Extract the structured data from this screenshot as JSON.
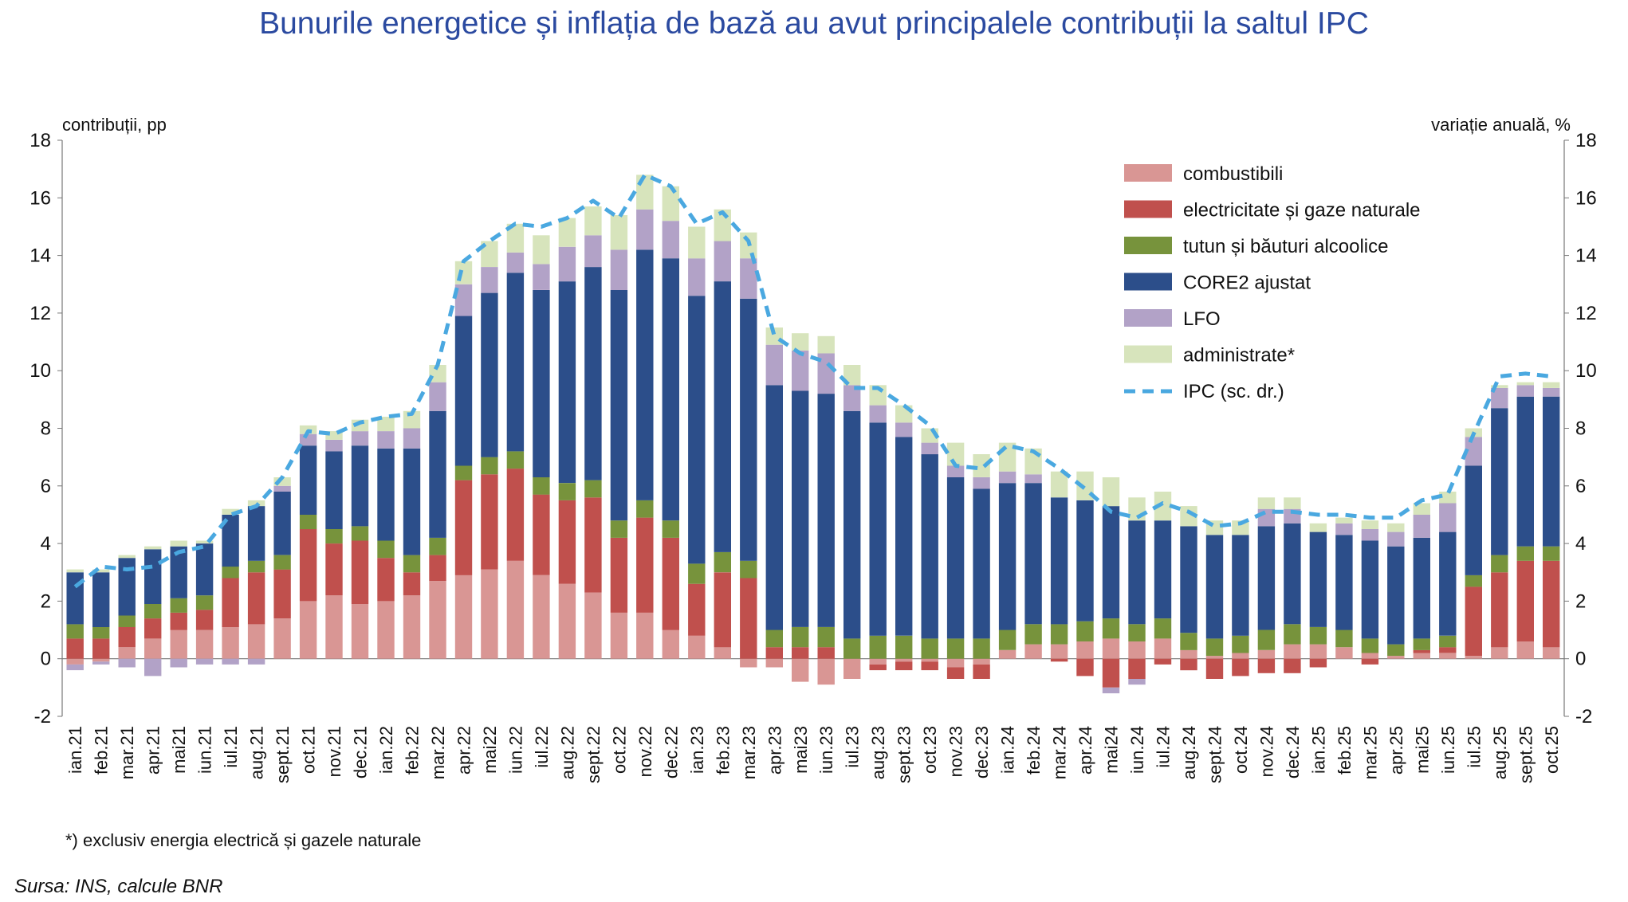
{
  "chart_data": {
    "type": "bar",
    "stacked": true,
    "title": "Bunurile energetice și inflația de bază au avut principalele contribuții la saltul IPC",
    "ylabel_left": "contribuții, pp",
    "ylabel_right": "variație anuală, %",
    "ylim": [
      -2,
      18
    ],
    "yticks": [
      -2,
      0,
      2,
      4,
      6,
      8,
      10,
      12,
      14,
      16,
      18
    ],
    "categories": [
      "ian.21",
      "feb.21",
      "mar.21",
      "apr.21",
      "mai21",
      "iun.21",
      "iul.21",
      "aug.21",
      "sept.21",
      "oct.21",
      "nov.21",
      "dec.21",
      "ian.22",
      "feb.22",
      "mar.22",
      "apr.22",
      "mai22",
      "iun.22",
      "iul.22",
      "aug.22",
      "sept.22",
      "oct.22",
      "nov.22",
      "dec.22",
      "ian.23",
      "feb.23",
      "mar.23",
      "apr.23",
      "mai23",
      "iun.23",
      "iul.23",
      "aug.23",
      "sept.23",
      "oct.23",
      "nov.23",
      "dec.23",
      "ian.24",
      "feb.24",
      "mar.24",
      "apr.24",
      "mai24",
      "iun.24",
      "iul.24",
      "aug.24",
      "sept.24",
      "oct.24",
      "nov.24",
      "dec.24",
      "ian.25",
      "feb.25",
      "mar.25",
      "apr.25",
      "mai25",
      "iun.25",
      "iul.25",
      "aug.25",
      "sept.25",
      "oct.25"
    ],
    "series": [
      {
        "name": "combustibili",
        "color": "#d99694",
        "values": [
          -0.2,
          -0.1,
          0.4,
          0.7,
          1.0,
          1.0,
          1.1,
          1.2,
          1.4,
          2.0,
          2.2,
          1.9,
          2.0,
          2.2,
          2.7,
          2.9,
          3.1,
          3.4,
          2.9,
          2.6,
          2.3,
          1.6,
          1.6,
          1.0,
          0.8,
          0.4,
          -0.3,
          -0.3,
          -0.8,
          -0.9,
          -0.7,
          -0.2,
          -0.1,
          -0.1,
          -0.3,
          -0.2,
          0.3,
          0.5,
          0.5,
          0.6,
          0.7,
          0.6,
          0.7,
          0.3,
          0.1,
          0.2,
          0.3,
          0.5,
          0.5,
          0.4,
          0.2,
          0.1,
          0.2,
          0.2,
          0.1,
          0.4,
          0.6,
          0.4
        ]
      },
      {
        "name": "electricitate și gaze naturale",
        "color": "#c0504d",
        "values": [
          0.7,
          0.7,
          0.7,
          0.7,
          0.6,
          0.7,
          1.7,
          1.8,
          1.7,
          2.5,
          1.8,
          2.2,
          1.5,
          0.8,
          0.9,
          3.3,
          3.3,
          3.2,
          2.8,
          2.9,
          3.3,
          2.6,
          3.3,
          3.2,
          1.8,
          2.6,
          2.8,
          0.4,
          0.4,
          0.4,
          0.0,
          -0.2,
          -0.3,
          -0.3,
          -0.4,
          -0.5,
          0.0,
          0.0,
          -0.1,
          -0.6,
          -1.0,
          -0.7,
          -0.2,
          -0.4,
          -0.7,
          -0.6,
          -0.5,
          -0.5,
          -0.3,
          0.0,
          -0.2,
          0.0,
          0.1,
          0.2,
          2.4,
          2.6,
          2.8,
          3.0
        ]
      },
      {
        "name": "tutun și băuturi alcoolice",
        "color": "#77933c",
        "values": [
          0.5,
          0.4,
          0.4,
          0.5,
          0.5,
          0.5,
          0.4,
          0.4,
          0.5,
          0.5,
          0.5,
          0.5,
          0.6,
          0.6,
          0.6,
          0.5,
          0.6,
          0.6,
          0.6,
          0.6,
          0.6,
          0.6,
          0.6,
          0.6,
          0.7,
          0.7,
          0.6,
          0.6,
          0.7,
          0.7,
          0.7,
          0.8,
          0.8,
          0.7,
          0.7,
          0.7,
          0.7,
          0.7,
          0.7,
          0.7,
          0.7,
          0.6,
          0.7,
          0.6,
          0.6,
          0.6,
          0.7,
          0.7,
          0.6,
          0.6,
          0.5,
          0.4,
          0.4,
          0.4,
          0.4,
          0.6,
          0.5,
          0.5
        ]
      },
      {
        "name": "CORE2 ajustat",
        "color": "#2c4e8a",
        "values": [
          1.8,
          1.9,
          2.0,
          1.9,
          1.8,
          1.8,
          1.8,
          1.9,
          2.2,
          2.4,
          2.7,
          2.8,
          3.2,
          3.7,
          4.4,
          5.2,
          5.7,
          6.2,
          6.5,
          7.0,
          7.4,
          8.0,
          8.7,
          9.1,
          9.3,
          9.4,
          9.1,
          8.5,
          8.2,
          8.1,
          7.9,
          7.4,
          6.9,
          6.4,
          5.6,
          5.2,
          5.1,
          4.9,
          4.4,
          4.2,
          3.9,
          3.6,
          3.4,
          3.7,
          3.6,
          3.5,
          3.6,
          3.5,
          3.3,
          3.3,
          3.4,
          3.4,
          3.5,
          3.6,
          3.8,
          5.1,
          5.2,
          5.2
        ]
      },
      {
        "name": "LFO",
        "color": "#b2a2c7",
        "values": [
          -0.2,
          -0.1,
          -0.3,
          -0.6,
          -0.3,
          -0.2,
          -0.2,
          -0.2,
          0.2,
          0.4,
          0.4,
          0.5,
          0.6,
          0.7,
          1.0,
          1.1,
          0.9,
          0.7,
          0.9,
          1.2,
          1.1,
          1.4,
          1.4,
          1.3,
          1.3,
          1.4,
          1.4,
          1.4,
          1.4,
          1.4,
          0.9,
          0.6,
          0.5,
          0.4,
          0.4,
          0.4,
          0.4,
          0.3,
          0.0,
          0.0,
          -0.2,
          -0.2,
          0.0,
          0.0,
          0.0,
          0.0,
          0.6,
          0.5,
          0.0,
          0.4,
          0.4,
          0.5,
          0.8,
          1.0,
          1.0,
          0.7,
          0.4,
          0.3
        ]
      },
      {
        "name": "administrate*",
        "color": "#d7e4bc",
        "values": [
          0.1,
          0.1,
          0.1,
          0.1,
          0.2,
          0.1,
          0.2,
          0.2,
          0.3,
          0.3,
          0.3,
          0.4,
          0.5,
          0.6,
          0.6,
          0.8,
          0.9,
          1.0,
          1.0,
          1.0,
          1.0,
          1.2,
          1.2,
          1.2,
          1.1,
          1.1,
          0.9,
          0.6,
          0.6,
          0.6,
          0.7,
          0.7,
          0.6,
          0.5,
          0.8,
          0.8,
          1.0,
          0.9,
          0.9,
          1.0,
          1.0,
          0.8,
          1.0,
          0.7,
          0.5,
          0.5,
          0.4,
          0.4,
          0.3,
          0.2,
          0.3,
          0.3,
          0.4,
          0.4,
          0.3,
          0.1,
          0.1,
          0.2
        ]
      }
    ],
    "line_series": {
      "name": "IPC (sc. dr.)",
      "axis": "right",
      "color": "#4aa8e0",
      "values": [
        2.5,
        3.2,
        3.1,
        3.2,
        3.7,
        3.9,
        5.0,
        5.3,
        6.3,
        7.9,
        7.8,
        8.2,
        8.4,
        8.5,
        10.2,
        13.8,
        14.5,
        15.1,
        15.0,
        15.3,
        15.9,
        15.3,
        16.8,
        16.4,
        15.1,
        15.5,
        14.5,
        11.2,
        10.6,
        10.3,
        9.4,
        9.4,
        8.8,
        8.1,
        6.7,
        6.6,
        7.4,
        7.2,
        6.6,
        5.9,
        5.1,
        4.9,
        5.4,
        5.1,
        4.6,
        4.7,
        5.1,
        5.1,
        5.0,
        5.0,
        4.9,
        4.9,
        5.5,
        5.7,
        7.8,
        9.8,
        9.9,
        9.8
      ]
    }
  },
  "footnote": "*) exclusiv energia electrică și gazele naturale",
  "source": "Sursa: INS, calcule BNR"
}
